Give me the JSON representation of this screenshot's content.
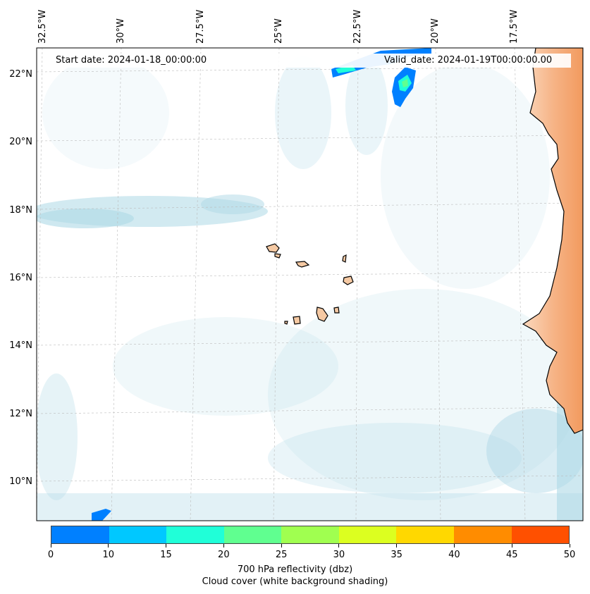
{
  "map": {
    "start_date": "Start date: 2024-01-18_00:00:00",
    "valid_date": "Valid_date: 2024-01-19T00:00:00.00",
    "lon_labels": [
      "32.5°W",
      "30°W",
      "27.5°W",
      "25°W",
      "22.5°W",
      "20°W",
      "17.5°W"
    ],
    "lat_labels": [
      "22°N",
      "20°N",
      "18°N",
      "16°N",
      "14°N",
      "12°N",
      "10°N"
    ],
    "colors": {
      "land": "#f4a46a",
      "land_light": "#fbd6b6",
      "island": "#f5c9a3",
      "cloud": "#add8e6",
      "cloud_light": "#d6ecf3",
      "coast": "#000000"
    }
  },
  "colorbar": {
    "title": "700 hPa reflectivity (dbz)",
    "subtitle": "Cloud cover (white background shading)",
    "ticks": [
      "0",
      "10",
      "15",
      "20",
      "25",
      "30",
      "35",
      "40",
      "45",
      "50"
    ],
    "colors": [
      "#0080ff",
      "#00c8ff",
      "#20ffd8",
      "#60ff90",
      "#a0ff50",
      "#dcff20",
      "#ffd800",
      "#ff8c00",
      "#ff5000"
    ]
  }
}
